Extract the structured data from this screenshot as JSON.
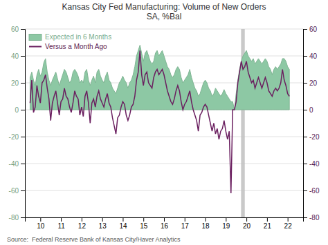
{
  "chart_data": {
    "type": "line",
    "title": "Kansas City Fed Manufacturing: Volume of New Orders\nSA, %Bal",
    "source": "Source:  Federal Reserve Bank of Kansas City/Haver Analytics",
    "x": [
      2009.5,
      2009.5833333333333,
      2009.6666666666667,
      2009.75,
      2009.8333333333333,
      2009.9166666666667,
      2010,
      2010.0833333333333,
      2010.1666666666667,
      2010.25,
      2010.3333333333333,
      2010.4166666666667,
      2010.5,
      2010.5833333333333,
      2010.6666666666667,
      2010.75,
      2010.8333333333333,
      2010.9166666666667,
      2011,
      2011.0833333333333,
      2011.1666666666667,
      2011.25,
      2011.3333333333333,
      2011.4166666666667,
      2011.5,
      2011.5833333333333,
      2011.6666666666667,
      2011.75,
      2011.8333333333333,
      2011.9166666666667,
      2012,
      2012.0833333333333,
      2012.1666666666667,
      2012.25,
      2012.3333333333333,
      2012.4166666666667,
      2012.5,
      2012.5833333333333,
      2012.6666666666667,
      2012.75,
      2012.8333333333333,
      2012.9166666666667,
      2013,
      2013.0833333333333,
      2013.1666666666667,
      2013.25,
      2013.3333333333333,
      2013.4166666666667,
      2013.5,
      2013.5833333333333,
      2013.6666666666667,
      2013.75,
      2013.8333333333333,
      2013.9166666666667,
      2014,
      2014.0833333333333,
      2014.1666666666667,
      2014.25,
      2014.3333333333333,
      2014.4166666666667,
      2014.5,
      2014.5833333333333,
      2014.6666666666667,
      2014.75,
      2014.8333333333333,
      2014.9166666666667,
      2015,
      2015.0833333333333,
      2015.1666666666667,
      2015.25,
      2015.3333333333333,
      2015.4166666666667,
      2015.5,
      2015.5833333333333,
      2015.6666666666667,
      2015.75,
      2015.8333333333333,
      2015.9166666666667,
      2016,
      2016.0833333333333,
      2016.1666666666667,
      2016.25,
      2016.3333333333333,
      2016.4166666666667,
      2016.5,
      2016.5833333333333,
      2016.6666666666667,
      2016.75,
      2016.8333333333333,
      2016.9166666666667,
      2017,
      2017.0833333333333,
      2017.1666666666667,
      2017.25,
      2017.3333333333333,
      2017.4166666666667,
      2017.5,
      2017.5833333333333,
      2017.6666666666667,
      2017.75,
      2017.8333333333333,
      2017.9166666666667,
      2018,
      2018.0833333333333,
      2018.1666666666667,
      2018.25,
      2018.3333333333333,
      2018.4166666666667,
      2018.5,
      2018.5833333333333,
      2018.6666666666667,
      2018.75,
      2018.8333333333333,
      2018.9166666666667,
      2019,
      2019.0833333333333,
      2019.1666666666667,
      2019.25,
      2019.3333333333333,
      2019.4166666666667,
      2019.5,
      2019.5833333333333,
      2019.6666666666667,
      2019.75,
      2019.8333333333333,
      2019.9166666666667,
      2020,
      2020.0833333333333,
      2020.1666666666667,
      2020.25,
      2020.3333333333333,
      2020.4166666666667,
      2020.5,
      2020.5833333333333,
      2020.6666666666667,
      2020.75,
      2020.8333333333333,
      2020.9166666666667,
      2021,
      2021.0833333333333,
      2021.1666666666667,
      2021.25,
      2021.3333333333333,
      2021.4166666666667,
      2021.5,
      2021.5833333333333,
      2021.6666666666667,
      2021.75,
      2021.8333333333333,
      2021.9166666666667,
      2022,
      2022.0833333333333
    ],
    "series": [
      {
        "name": "Expected in 6 Months",
        "type": "area",
        "color": "#8dc8a4",
        "values": [
          24,
          28,
          22,
          18,
          26,
          30,
          25,
          28,
          35,
          38,
          28,
          22,
          18,
          22,
          25,
          28,
          23,
          18,
          22,
          26,
          30,
          28,
          24,
          20,
          22,
          28,
          30,
          28,
          25,
          20,
          22,
          20,
          28,
          30,
          22,
          18,
          22,
          25,
          20,
          28,
          30,
          25,
          22,
          20,
          25,
          28,
          22,
          20,
          16,
          14,
          12,
          16,
          20,
          22,
          25,
          22,
          20,
          16,
          20,
          22,
          26,
          32,
          40,
          44,
          48,
          42,
          36,
          42,
          44,
          40,
          36,
          34,
          36,
          42,
          44,
          40,
          42,
          44,
          40,
          36,
          32,
          30,
          26,
          24,
          26,
          30,
          32,
          30,
          24,
          20,
          22,
          24,
          26,
          30,
          24,
          20,
          16,
          14,
          10,
          12,
          16,
          20,
          22,
          20,
          16,
          14,
          10,
          12,
          16,
          14,
          12,
          10,
          12,
          15,
          12,
          10,
          8,
          6,
          6,
          0,
          12,
          22,
          30,
          36,
          40,
          42,
          44,
          40,
          38,
          36,
          38,
          34,
          36,
          38,
          36,
          34,
          36,
          38,
          36,
          32,
          30,
          26,
          30,
          32,
          30,
          32,
          34,
          38,
          38,
          36,
          32,
          30
        ]
      },
      {
        "name": "Versus a Month Ago",
        "type": "line",
        "color": "#6b2060",
        "axis": "y2",
        "values": [
          5,
          22,
          -2,
          2,
          18,
          10,
          5,
          20,
          22,
          26,
          16,
          8,
          -8,
          5,
          10,
          14,
          5,
          -4,
          6,
          8,
          16,
          10,
          8,
          2,
          -2,
          5,
          14,
          10,
          8,
          -4,
          2,
          -5,
          10,
          14,
          5,
          -10,
          5,
          8,
          2,
          10,
          14,
          8,
          5,
          2,
          8,
          12,
          5,
          2,
          -6,
          -12,
          -18,
          -6,
          -4,
          2,
          6,
          4,
          -4,
          -8,
          -4,
          2,
          4,
          10,
          22,
          28,
          44,
          26,
          18,
          26,
          28,
          20,
          18,
          16,
          24,
          28,
          30,
          26,
          28,
          30,
          26,
          20,
          14,
          10,
          6,
          4,
          8,
          14,
          18,
          14,
          6,
          0,
          4,
          6,
          10,
          14,
          6,
          0,
          -4,
          -8,
          -16,
          -4,
          -2,
          2,
          4,
          2,
          -4,
          -10,
          -16,
          -10,
          -18,
          -14,
          -22,
          -16,
          -14,
          -8,
          -16,
          -22,
          -16,
          -62,
          0,
          0,
          6,
          20,
          28,
          36,
          30,
          32,
          36,
          28,
          24,
          20,
          22,
          16,
          20,
          24,
          20,
          16,
          20,
          24,
          20,
          14,
          12,
          10,
          14,
          16,
          14,
          16,
          20,
          30,
          22,
          18,
          12,
          10
        ]
      }
    ],
    "spans": [
      {
        "x0": 2019.74,
        "x1": 2019.92,
        "color": "#c0c0c0"
      }
    ],
    "xlim": [
      2009.25,
      2022.75
    ],
    "xticks": [
      {
        "value": 2010,
        "label": "10"
      },
      {
        "value": 2011,
        "label": "11"
      },
      {
        "value": 2012,
        "label": "12"
      },
      {
        "value": 2013,
        "label": "13"
      },
      {
        "value": 2014,
        "label": "14"
      },
      {
        "value": 2015,
        "label": "15"
      },
      {
        "value": 2016,
        "label": "16"
      },
      {
        "value": 2017,
        "label": "17"
      },
      {
        "value": 2018,
        "label": "18"
      },
      {
        "value": 2019,
        "label": "19"
      },
      {
        "value": 2020,
        "label": "20"
      },
      {
        "value": 2021,
        "label": "21"
      },
      {
        "value": 2022,
        "label": "22"
      }
    ],
    "ylim": [
      -80,
      60
    ],
    "yticks": [
      -80,
      -60,
      -40,
      -20,
      0,
      20,
      40,
      60
    ],
    "y2lim": [
      -80,
      60
    ],
    "y2ticks": [
      -80,
      -60,
      -40,
      -20,
      0,
      20,
      40,
      60
    ],
    "grid": true,
    "legend": "upper left"
  }
}
